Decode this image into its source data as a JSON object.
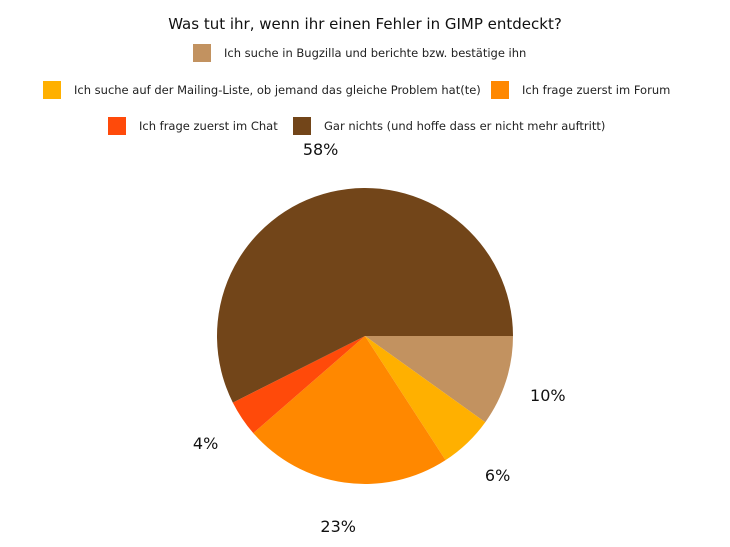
{
  "chart_data": {
    "type": "pie",
    "title": "Was tut ihr, wenn ihr einen Fehler in GIMP entdeckt?",
    "legend_position": "top",
    "categories": [
      "Ich suche in Bugzilla und berichte bzw. bestätige ihn",
      "Ich suche auf der Mailing-Liste, ob jemand das gleiche Problem hat(te)",
      "Ich frage zuerst im Forum",
      "Ich frage zuerst im Chat",
      "Gar nichts (und hoffe dass er nicht mehr auftritt)"
    ],
    "values": [
      10,
      6,
      23,
      4,
      58
    ],
    "labels": [
      "10%",
      "6%",
      "23%",
      "4%",
      "58%"
    ],
    "colors": [
      "#c29260",
      "#ffb000",
      "#ff8800",
      "#ff4a0a",
      "#724519"
    ]
  }
}
